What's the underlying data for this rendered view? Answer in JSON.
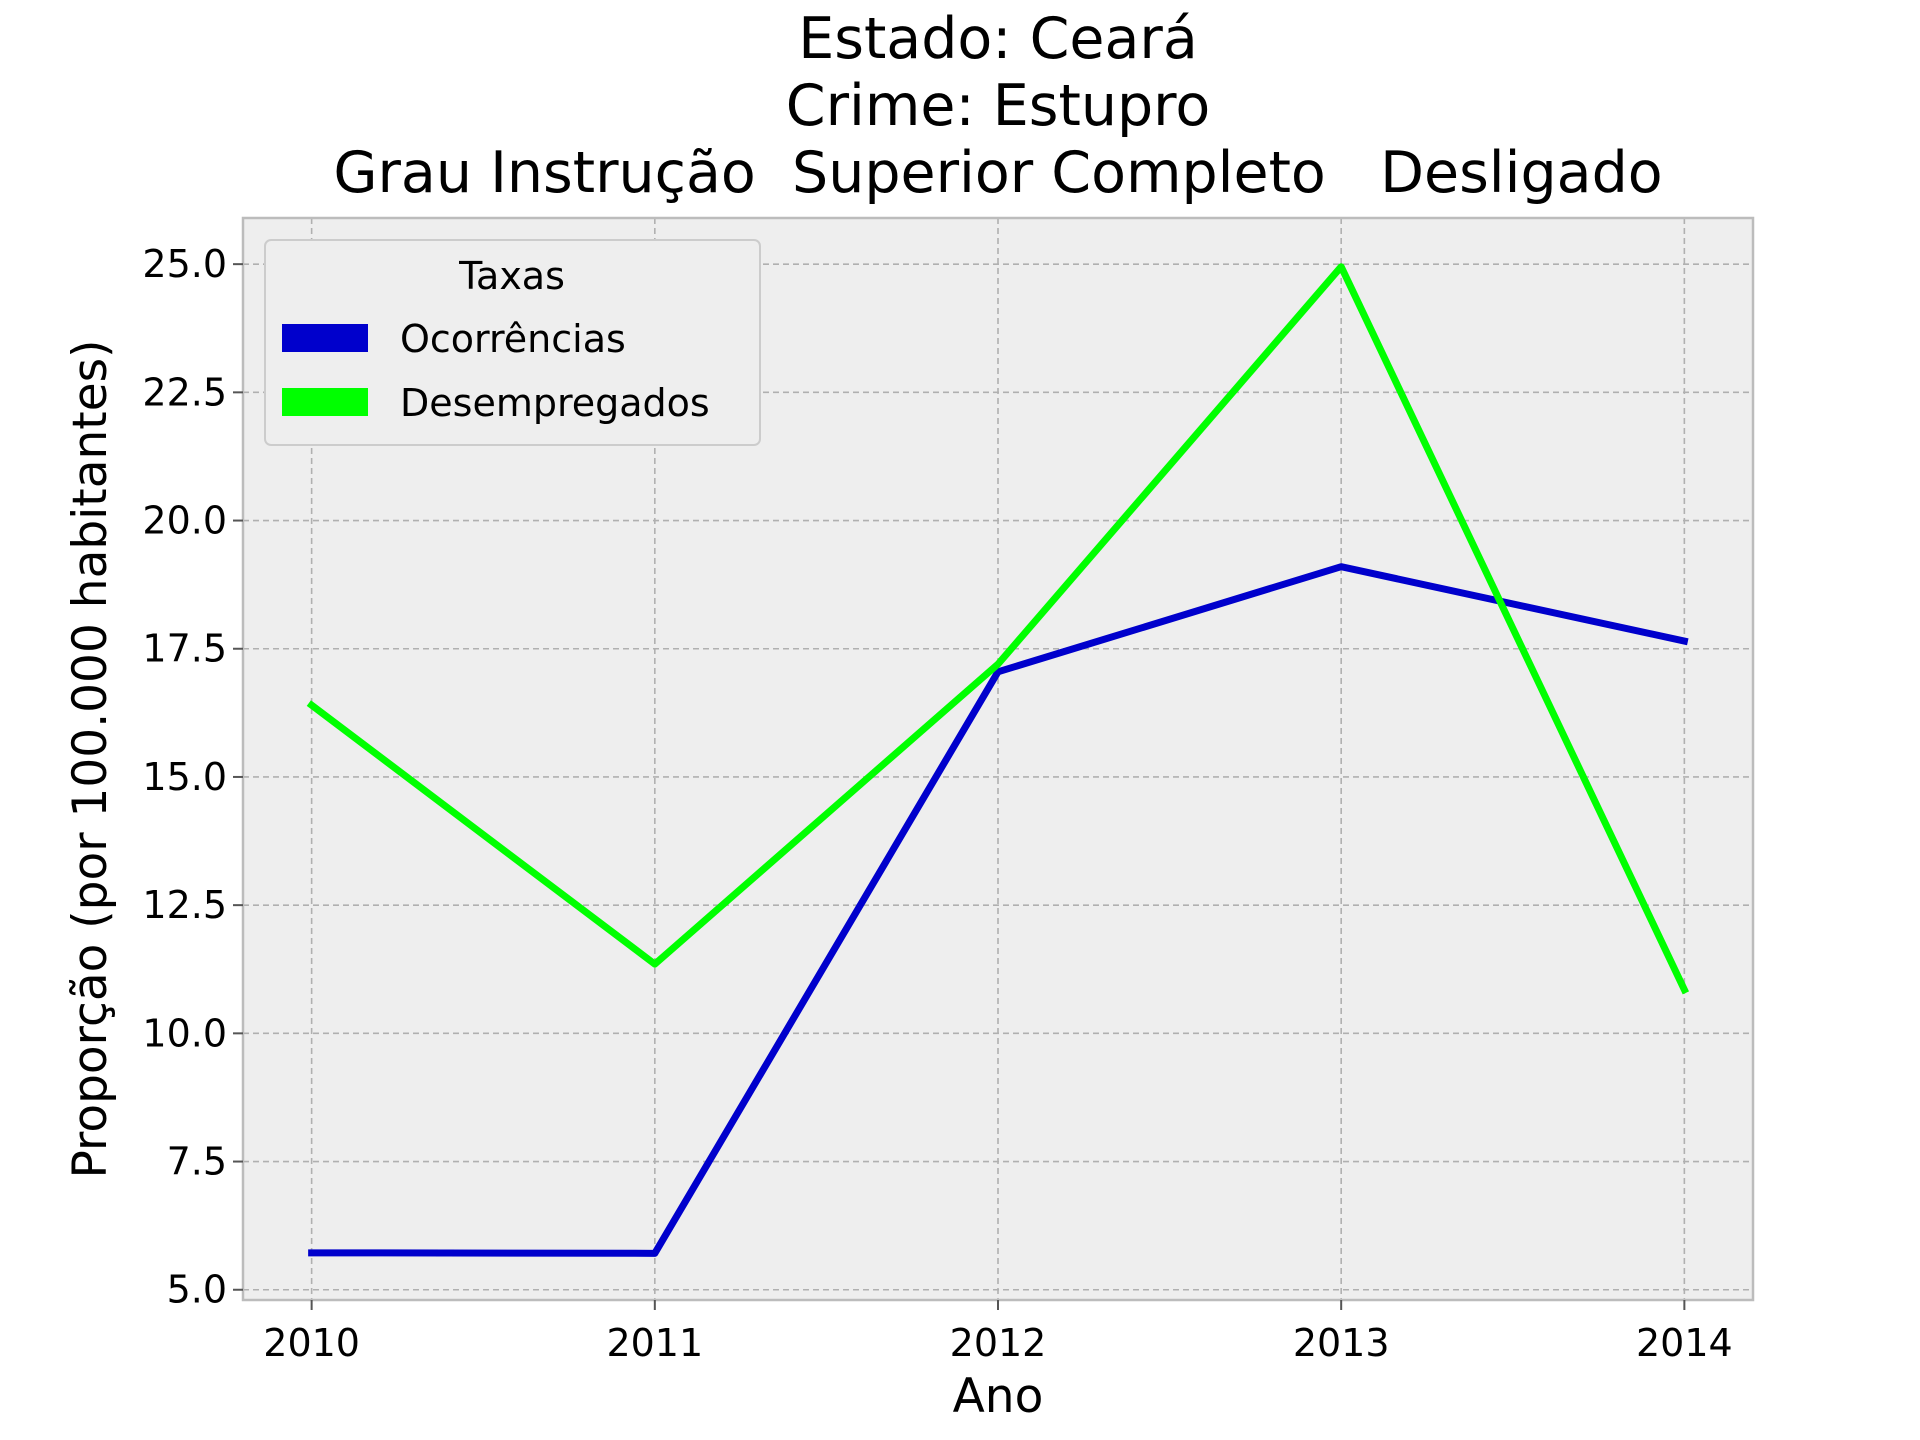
{
  "chart_data": {
    "type": "line",
    "title_lines": [
      "Estado: Ceará",
      "Crime: Estupro",
      "Grau Instrução  Superior Completo   Desligado"
    ],
    "xlabel": "Ano",
    "ylabel": "Proporção (por 100.000 habitantes)",
    "x": [
      2010,
      2011,
      2012,
      2013,
      2014
    ],
    "x_tick_labels": [
      "2010",
      "2011",
      "2012",
      "2013",
      "2014"
    ],
    "y_ticks": [
      5.0,
      7.5,
      10.0,
      12.5,
      15.0,
      17.5,
      20.0,
      22.5,
      25.0
    ],
    "y_tick_labels": [
      "5.0",
      "7.5",
      "10.0",
      "12.5",
      "15.0",
      "17.5",
      "20.0",
      "22.5",
      "25.0"
    ],
    "xlim": [
      2009.8,
      2014.2
    ],
    "ylim": [
      4.8,
      25.9
    ],
    "grid": true,
    "legend": {
      "title": "Taxas",
      "placement": "top-left"
    },
    "series": [
      {
        "name": "Ocorrências",
        "color": "#0000cc",
        "values": [
          5.72,
          5.71,
          17.05,
          19.1,
          17.65
        ]
      },
      {
        "name": "Desempregados",
        "color": "#00ff00",
        "values": [
          16.4,
          11.35,
          17.2,
          24.95,
          10.85
        ]
      }
    ]
  }
}
